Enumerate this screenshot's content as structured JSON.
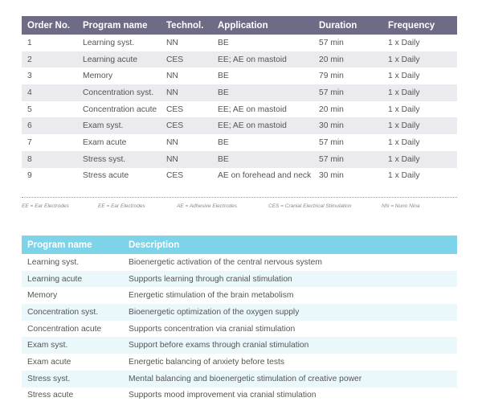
{
  "programs_table": {
    "headers": [
      "Order No.",
      "Program name",
      "Technol.",
      "Application",
      "Duration",
      "Frequency"
    ],
    "rows": [
      [
        "1",
        "Learning syst.",
        "NN",
        "BE",
        "57 min",
        "1 x Daily"
      ],
      [
        "2",
        "Learning acute",
        "CES",
        "EE; AE on mastoid",
        "20 min",
        "1 x Daily"
      ],
      [
        "3",
        "Memory",
        "NN",
        "BE",
        "79 min",
        "1 x Daily"
      ],
      [
        "4",
        "Concentration syst.",
        "NN",
        "BE",
        "57 min",
        "1 x Daily"
      ],
      [
        "5",
        "Concentration acute",
        "CES",
        "EE; AE on mastoid",
        "20 min",
        "1 x Daily"
      ],
      [
        "6",
        "Exam syst.",
        "CES",
        "EE; AE on mastoid",
        "30 min",
        "1 x Daily"
      ],
      [
        "7",
        "Exam acute",
        "NN",
        "BE",
        "57 min",
        "1 x Daily"
      ],
      [
        "8",
        "Stress syst.",
        "NN",
        "BE",
        "57 min",
        "1 x Daily"
      ],
      [
        "9",
        "Stress acute",
        "CES",
        "AE on forehead and neck",
        "30 min",
        "1 x Daily"
      ]
    ]
  },
  "legend": [
    "EE = Ear Electrodes",
    "EE = Ear Electrodes",
    "AE = Adhesive Electrodes",
    "CES = Cranial Electrical Stimulation",
    "NN = Nuno Nina"
  ],
  "descriptions_table": {
    "headers": [
      "Program name",
      "Description"
    ],
    "rows": [
      [
        "Learning syst.",
        "Bioenergetic activation of the central nervous system"
      ],
      [
        "Learning acute",
        "Supports learning through cranial stimulation"
      ],
      [
        "Memory",
        "Energetic stimulation of the brain metabolism"
      ],
      [
        "Concentration syst.",
        "Bioenergetic optimization of the oxygen supply"
      ],
      [
        "Concentration acute",
        "Supports concentration via cranial stimulation"
      ],
      [
        "Exam syst.",
        "Support before exams through cranial stimulation"
      ],
      [
        "Exam acute",
        "Energetic balancing of anxiety before tests"
      ],
      [
        "Stress syst.",
        "Mental balancing and bioenergetic stimulation of creative power"
      ],
      [
        "Stress acute",
        "Supports mood improvement via cranial stimulation"
      ]
    ]
  },
  "colors": {
    "table1_header": "#6e6b86",
    "table1_row_alt": "#eaeaef",
    "table2_header": "#7dd3e8",
    "table2_row_alt": "#eaf7fb",
    "text": "#555555"
  }
}
